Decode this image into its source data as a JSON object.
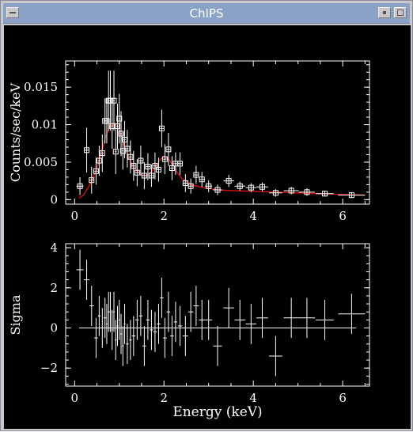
{
  "window": {
    "title": "ChIPS",
    "menu_icon": "window-menu-icon",
    "minimize_icon": "minimize-icon",
    "maximize_icon": "maximize-icon"
  },
  "colors": {
    "background": "#000000",
    "axes": "#ffffff",
    "data": "#ffffff",
    "model": "#cc1010",
    "titlebar": "#8aa2c6"
  },
  "chart_data": [
    {
      "type": "scatter",
      "panel": "spectrum",
      "xlabel": "",
      "ylabel": "Counts/sec/keV",
      "xlim": [
        -0.2,
        6.6
      ],
      "ylim": [
        -0.0006,
        0.0185
      ],
      "xticks": [
        0,
        2,
        4,
        6
      ],
      "xtick_labels": [
        "0",
        "2",
        "4",
        "6"
      ],
      "yticks": [
        0,
        0.005,
        0.01,
        0.015
      ],
      "ytick_labels": [
        "0",
        "0.005",
        "0.01",
        "0.015"
      ],
      "grid": false,
      "data_points": {
        "x": [
          0.12,
          0.27,
          0.38,
          0.48,
          0.55,
          0.62,
          0.68,
          0.72,
          0.76,
          0.8,
          0.84,
          0.88,
          0.92,
          0.96,
          1.0,
          1.04,
          1.08,
          1.12,
          1.18,
          1.25,
          1.32,
          1.4,
          1.48,
          1.56,
          1.64,
          1.72,
          1.8,
          1.88,
          1.95,
          2.02,
          2.1,
          2.18,
          2.26,
          2.36,
          2.48,
          2.6,
          2.72,
          2.85,
          3.0,
          3.2,
          3.45,
          3.7,
          3.95,
          4.2,
          4.5,
          4.85,
          5.2,
          5.6,
          6.2
        ],
        "y": [
          0.0018,
          0.0066,
          0.0026,
          0.0038,
          0.0052,
          0.0062,
          0.0105,
          0.0105,
          0.0132,
          0.0132,
          0.0098,
          0.0132,
          0.0064,
          0.0098,
          0.0108,
          0.0088,
          0.0065,
          0.008,
          0.0068,
          0.0057,
          0.0045,
          0.0036,
          0.0052,
          0.0032,
          0.0044,
          0.0032,
          0.0045,
          0.004,
          0.0095,
          0.0054,
          0.0067,
          0.0042,
          0.0048,
          0.0048,
          0.0022,
          0.0018,
          0.0033,
          0.0027,
          0.0018,
          0.0013,
          0.0025,
          0.0018,
          0.0016,
          0.0017,
          0.0009,
          0.0012,
          0.001,
          0.0008,
          0.0006
        ],
        "yerr": [
          0.0012,
          0.003,
          0.0018,
          0.0018,
          0.002,
          0.0025,
          0.003,
          0.003,
          0.004,
          0.004,
          0.003,
          0.004,
          0.003,
          0.003,
          0.0033,
          0.003,
          0.0025,
          0.0025,
          0.0025,
          0.0022,
          0.002,
          0.0018,
          0.002,
          0.0018,
          0.0018,
          0.0015,
          0.0018,
          0.0016,
          0.0025,
          0.002,
          0.0022,
          0.0016,
          0.0015,
          0.0015,
          0.0012,
          0.001,
          0.0012,
          0.001,
          0.0008,
          0.0007,
          0.0008,
          0.0006,
          0.0006,
          0.0006,
          0.0005,
          0.0005,
          0.0005,
          0.0004,
          0.0004
        ],
        "xerr": [
          0.08,
          0.06,
          0.05,
          0.04,
          0.03,
          0.03,
          0.03,
          0.02,
          0.02,
          0.02,
          0.02,
          0.02,
          0.02,
          0.02,
          0.02,
          0.02,
          0.02,
          0.02,
          0.03,
          0.03,
          0.04,
          0.04,
          0.04,
          0.04,
          0.04,
          0.04,
          0.04,
          0.04,
          0.04,
          0.04,
          0.04,
          0.04,
          0.04,
          0.05,
          0.06,
          0.06,
          0.06,
          0.07,
          0.08,
          0.1,
          0.12,
          0.12,
          0.12,
          0.13,
          0.15,
          0.17,
          0.18,
          0.2,
          0.3
        ]
      },
      "model_line": {
        "x": [
          0.1,
          0.2,
          0.3,
          0.4,
          0.5,
          0.6,
          0.7,
          0.8,
          0.9,
          1.0,
          1.1,
          1.2,
          1.3,
          1.4,
          1.5,
          1.6,
          1.7,
          1.8,
          1.9,
          2.0,
          2.1,
          2.2,
          2.3,
          2.4,
          2.6,
          2.8,
          3.0,
          3.2,
          3.5,
          4.0,
          4.5,
          5.0,
          5.5,
          6.0,
          6.5
        ],
        "y": [
          0.0002,
          0.0006,
          0.0016,
          0.0027,
          0.0042,
          0.0062,
          0.0085,
          0.0098,
          0.0102,
          0.0092,
          0.0075,
          0.0058,
          0.0045,
          0.0038,
          0.0033,
          0.0032,
          0.0036,
          0.0043,
          0.0052,
          0.0058,
          0.0054,
          0.0046,
          0.0036,
          0.0028,
          0.002,
          0.0017,
          0.0015,
          0.0013,
          0.0012,
          0.0011,
          0.001,
          0.0009,
          0.0008,
          0.0007,
          0.0006
        ]
      }
    },
    {
      "type": "scatter",
      "panel": "residuals",
      "xlabel": "Energy (keV)",
      "ylabel": "Sigma",
      "xlim": [
        -0.2,
        6.6
      ],
      "ylim": [
        -2.9,
        4.2
      ],
      "xticks": [
        0,
        2,
        4,
        6
      ],
      "xtick_labels": [
        "0",
        "2",
        "4",
        "6"
      ],
      "yticks": [
        -2,
        0,
        2,
        4
      ],
      "ytick_labels": [
        "−2",
        "0",
        "2",
        "4"
      ],
      "grid": false,
      "zero_line": [
        0.1,
        6.3
      ],
      "data_points": {
        "x": [
          0.12,
          0.27,
          0.38,
          0.48,
          0.55,
          0.62,
          0.68,
          0.72,
          0.76,
          0.8,
          0.84,
          0.88,
          0.92,
          0.96,
          1.0,
          1.04,
          1.08,
          1.12,
          1.18,
          1.25,
          1.32,
          1.4,
          1.48,
          1.56,
          1.64,
          1.72,
          1.8,
          1.88,
          1.95,
          2.02,
          2.1,
          2.18,
          2.26,
          2.36,
          2.48,
          2.6,
          2.72,
          2.85,
          3.0,
          3.2,
          3.45,
          3.7,
          3.95,
          4.2,
          4.5,
          4.85,
          5.2,
          5.6,
          6.2
        ],
        "y": [
          2.9,
          2.4,
          1.1,
          -0.5,
          0.6,
          0.0,
          0.5,
          0.2,
          0.8,
          0.8,
          -0.1,
          0.8,
          -0.6,
          0.1,
          0.4,
          -0.3,
          -0.9,
          0.2,
          -0.8,
          -0.6,
          -0.4,
          0.4,
          0.6,
          -0.9,
          0.4,
          -0.1,
          -0.2,
          0.2,
          1.5,
          -0.5,
          0.8,
          -0.4,
          0.3,
          0.1,
          -0.4,
          0.8,
          1.1,
          0.4,
          0.4,
          -0.9,
          1.0,
          0.4,
          0.2,
          0.5,
          -1.4,
          0.5,
          0.5,
          0.4,
          0.7
        ],
        "yerr": [
          1.0,
          1.0,
          1.0,
          1.0,
          1.0,
          1.0,
          1.0,
          1.0,
          1.0,
          1.0,
          1.0,
          1.0,
          1.0,
          1.0,
          1.0,
          1.0,
          1.0,
          1.0,
          1.0,
          1.0,
          1.0,
          1.0,
          1.0,
          1.0,
          1.0,
          1.0,
          1.0,
          1.0,
          1.0,
          1.0,
          1.0,
          1.0,
          1.0,
          1.0,
          1.0,
          1.0,
          1.0,
          1.0,
          1.0,
          1.0,
          1.0,
          1.0,
          1.0,
          1.0,
          1.0,
          1.0,
          1.0,
          1.0,
          1.0
        ],
        "xerr": [
          0.08,
          0.06,
          0.05,
          0.04,
          0.03,
          0.03,
          0.03,
          0.02,
          0.02,
          0.02,
          0.02,
          0.02,
          0.02,
          0.02,
          0.02,
          0.02,
          0.02,
          0.02,
          0.03,
          0.03,
          0.04,
          0.04,
          0.04,
          0.04,
          0.04,
          0.04,
          0.04,
          0.04,
          0.04,
          0.04,
          0.04,
          0.04,
          0.04,
          0.05,
          0.06,
          0.06,
          0.06,
          0.07,
          0.08,
          0.1,
          0.12,
          0.12,
          0.12,
          0.13,
          0.15,
          0.17,
          0.18,
          0.2,
          0.3
        ]
      }
    }
  ]
}
